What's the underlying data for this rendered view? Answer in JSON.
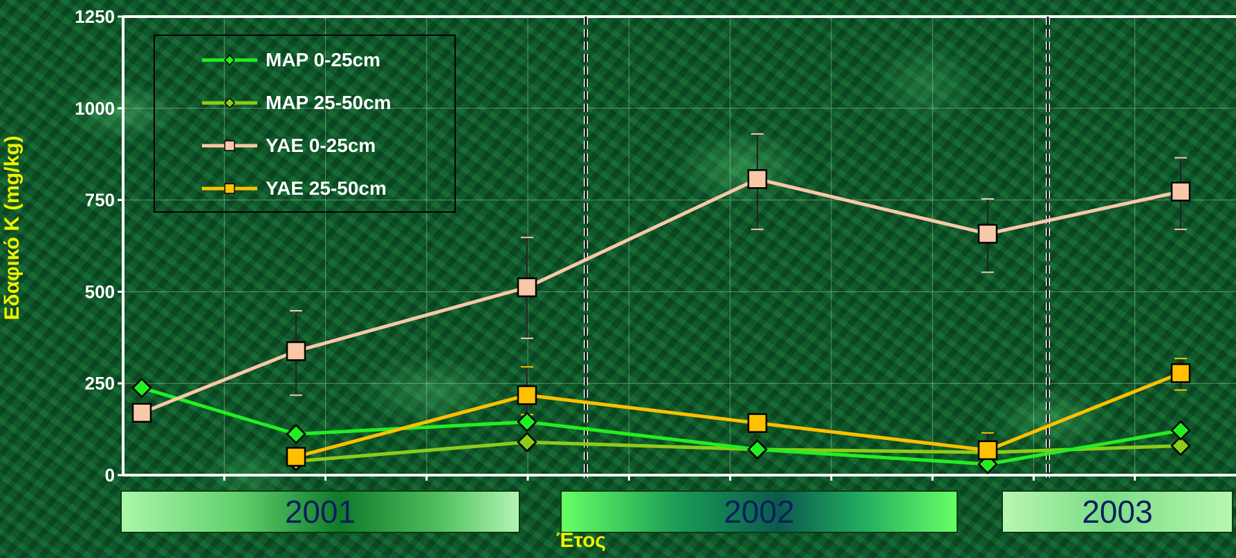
{
  "chart_data": {
    "type": "line",
    "ylabel": "Εδαφικό Κ (mg/kg)",
    "xlabel": "Έτος",
    "ylim": [
      0,
      1250
    ],
    "yticks": [
      0,
      250,
      500,
      750,
      1000,
      1250
    ],
    "grid": true,
    "legend_placement": "top-left",
    "year_groups": [
      "2001",
      "2002",
      "2003"
    ],
    "x": [
      1,
      2,
      3,
      4,
      5,
      6
    ],
    "series": [
      {
        "name": "MAP 0-25cm",
        "color": "#22ee22",
        "marker": "diamond",
        "values": [
          238,
          112,
          145,
          70,
          30,
          122
        ]
      },
      {
        "name": "MAP 25-50cm",
        "color": "#8ccc1a",
        "marker": "diamond",
        "values": [
          null,
          38,
          90,
          70,
          62,
          80
        ]
      },
      {
        "name": "YAE 0-25cm",
        "color": "#f9c8a8",
        "marker": "square",
        "values": [
          170,
          338,
          512,
          807,
          658,
          773
        ],
        "err_low": [
          null,
          218,
          373,
          670,
          553,
          670
        ],
        "err_high": [
          null,
          448,
          648,
          930,
          753,
          865
        ]
      },
      {
        "name": "YAE 25-50cm",
        "color": "#ffc000",
        "marker": "square",
        "values": [
          null,
          50,
          218,
          142,
          68,
          278
        ],
        "err_low": [
          null,
          null,
          165,
          118,
          50,
          232
        ],
        "err_high": [
          null,
          null,
          295,
          165,
          115,
          318
        ]
      }
    ]
  },
  "colors": {
    "axis_label": "#f2f000",
    "year_text": "#0c1f5c"
  }
}
